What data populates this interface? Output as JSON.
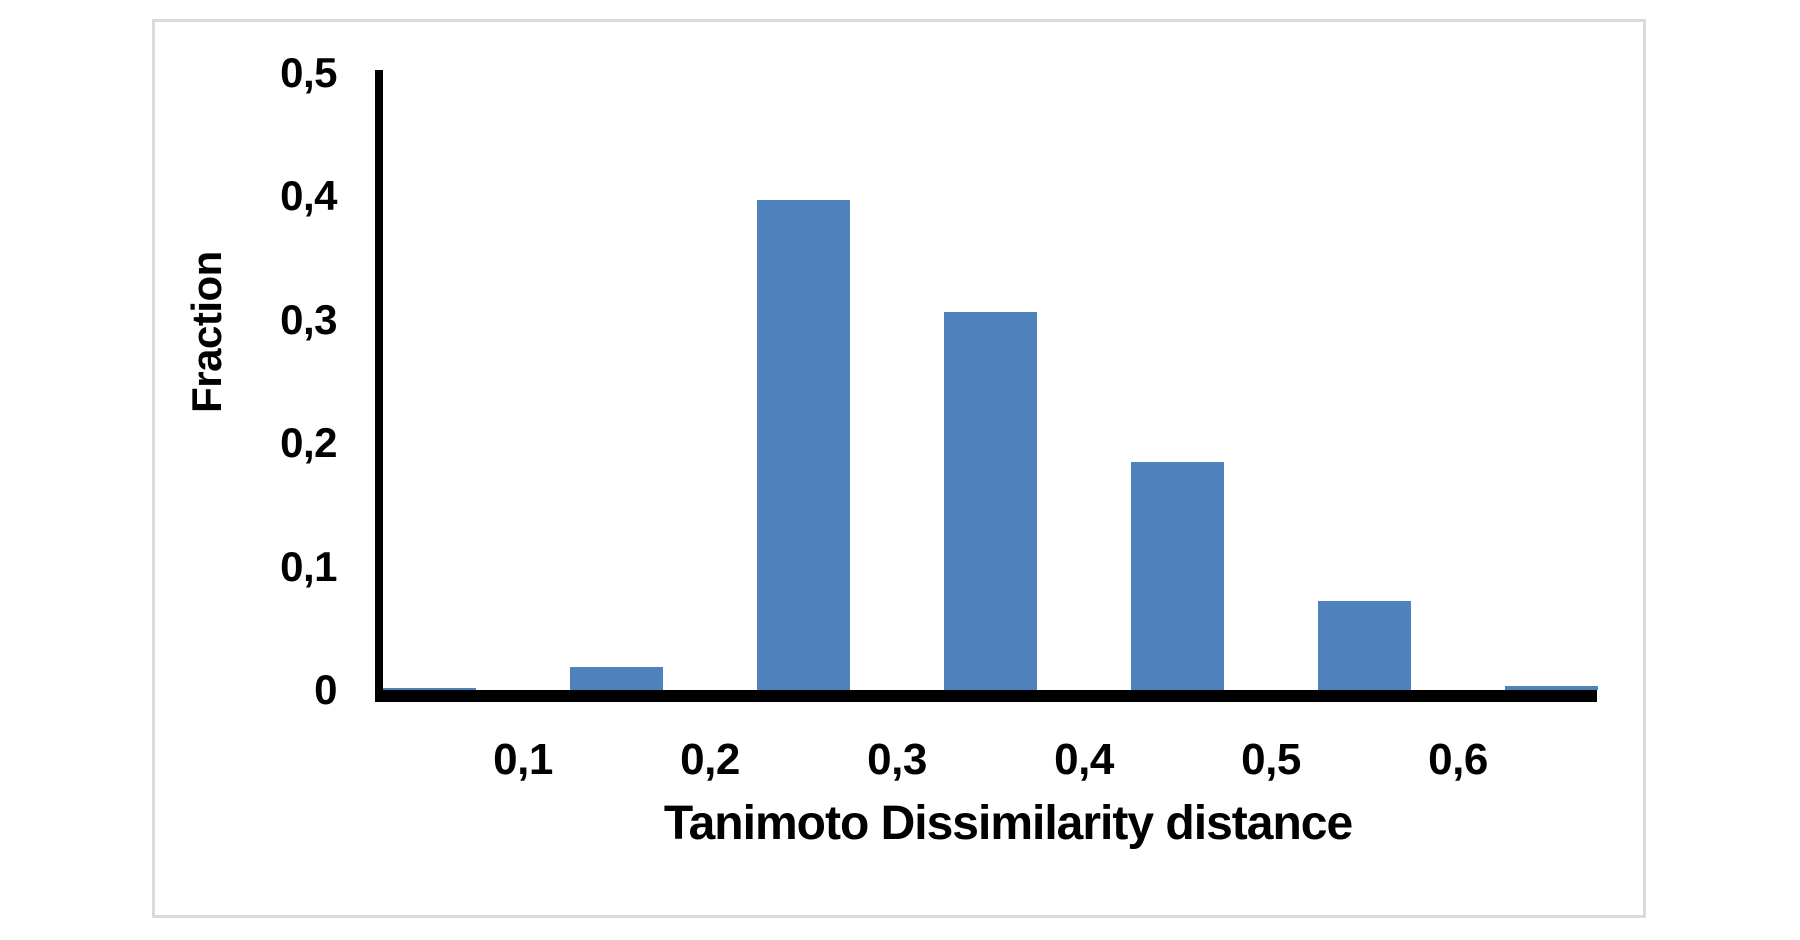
{
  "chart_data": {
    "type": "bar",
    "title": "",
    "xlabel": "Tanimoto Dissimilarity distance",
    "ylabel": "Fraction",
    "decimal_separator": ",",
    "categories": [
      0.05,
      0.15,
      0.25,
      0.35,
      0.45,
      0.55,
      0.65
    ],
    "values": [
      0.002,
      0.019,
      0.397,
      0.306,
      0.185,
      0.072,
      0.003
    ],
    "x_tick_labels": [
      "0,1",
      "0,2",
      "0,3",
      "0,4",
      "0,5",
      "0,6"
    ],
    "x_tick_values": [
      0.1,
      0.2,
      0.3,
      0.4,
      0.5,
      0.6
    ],
    "y_tick_labels": [
      "0",
      "0,1",
      "0,2",
      "0,3",
      "0,4",
      "0,5"
    ],
    "y_tick_values": [
      0,
      0.1,
      0.2,
      0.3,
      0.4,
      0.5
    ],
    "ylim": [
      0,
      0.5
    ],
    "grid": false,
    "legend": false,
    "bar_color": "#4f81bd",
    "axis_color": "#000000",
    "frame_border_color": "#dadada",
    "background_color": "#ffffff"
  }
}
